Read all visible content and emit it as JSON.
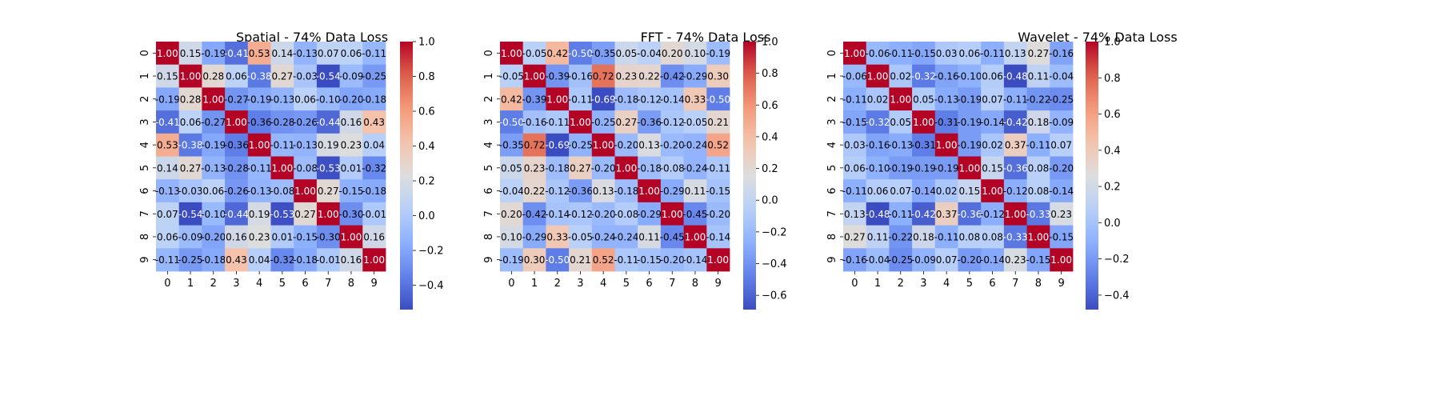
{
  "chart_data": [
    {
      "type": "heatmap",
      "title": "Spatial - 74% Data Loss",
      "x_ticks": [
        "0",
        "1",
        "2",
        "3",
        "4",
        "5",
        "6",
        "7",
        "8",
        "9"
      ],
      "y_ticks": [
        "0",
        "1",
        "2",
        "3",
        "4",
        "5",
        "6",
        "7",
        "8",
        "9"
      ],
      "colormap": "coolwarm",
      "vmin": -0.54,
      "vmax": 1.0,
      "colorbar_ticks": [
        "1.0",
        "0.8",
        "0.6",
        "0.4",
        "0.2",
        "0.0",
        "−0.2",
        "−0.4"
      ],
      "colorbar_tick_values": [
        1.0,
        0.8,
        0.6,
        0.4,
        0.2,
        0.0,
        -0.2,
        -0.4
      ],
      "matrix": [
        [
          1.0,
          0.15,
          -0.19,
          -0.41,
          0.53,
          0.14,
          -0.13,
          0.07,
          0.06,
          -0.11
        ],
        [
          0.15,
          1.0,
          0.28,
          0.06,
          -0.38,
          0.27,
          -0.03,
          -0.54,
          -0.09,
          -0.25
        ],
        [
          -0.19,
          0.28,
          1.0,
          -0.27,
          -0.19,
          -0.13,
          0.06,
          -0.1,
          -0.2,
          -0.18
        ],
        [
          -0.41,
          0.06,
          -0.27,
          1.0,
          -0.36,
          -0.28,
          -0.26,
          -0.44,
          0.16,
          0.43
        ],
        [
          0.53,
          -0.38,
          -0.19,
          -0.36,
          1.0,
          -0.11,
          -0.13,
          0.19,
          0.23,
          0.04
        ],
        [
          0.14,
          0.27,
          -0.13,
          -0.28,
          -0.11,
          1.0,
          -0.08,
          -0.53,
          0.01,
          -0.32
        ],
        [
          -0.13,
          -0.03,
          0.06,
          -0.26,
          -0.13,
          -0.08,
          1.0,
          0.27,
          -0.15,
          -0.18
        ],
        [
          0.07,
          -0.54,
          -0.1,
          -0.44,
          0.19,
          -0.53,
          0.27,
          1.0,
          -0.3,
          -0.01
        ],
        [
          0.06,
          -0.09,
          -0.2,
          0.16,
          0.23,
          0.01,
          -0.15,
          -0.3,
          1.0,
          0.16
        ],
        [
          -0.11,
          -0.25,
          -0.18,
          0.43,
          0.04,
          -0.32,
          -0.18,
          -0.01,
          0.16,
          1.0
        ]
      ]
    },
    {
      "type": "heatmap",
      "title": "FFT - 74% Data Loss",
      "x_ticks": [
        "0",
        "1",
        "2",
        "3",
        "4",
        "5",
        "6",
        "7",
        "8",
        "9"
      ],
      "y_ticks": [
        "0",
        "1",
        "2",
        "3",
        "4",
        "5",
        "6",
        "7",
        "8",
        "9"
      ],
      "colormap": "coolwarm",
      "vmin": -0.69,
      "vmax": 1.0,
      "colorbar_ticks": [
        "1.0",
        "0.8",
        "0.6",
        "0.4",
        "0.2",
        "0.0",
        "−0.2",
        "−0.4",
        "−0.6"
      ],
      "colorbar_tick_values": [
        1.0,
        0.8,
        0.6,
        0.4,
        0.2,
        0.0,
        -0.2,
        -0.4,
        -0.6
      ],
      "matrix": [
        [
          1.0,
          -0.05,
          0.42,
          -0.5,
          -0.35,
          0.05,
          -0.04,
          0.2,
          0.1,
          -0.19
        ],
        [
          -0.05,
          1.0,
          -0.39,
          -0.16,
          0.72,
          0.23,
          0.22,
          -0.42,
          -0.29,
          0.3
        ],
        [
          0.42,
          -0.39,
          1.0,
          -0.11,
          -0.69,
          -0.18,
          -0.12,
          -0.14,
          0.33,
          -0.5
        ],
        [
          -0.5,
          -0.16,
          -0.11,
          1.0,
          -0.25,
          0.27,
          -0.36,
          -0.12,
          -0.05,
          0.21
        ],
        [
          -0.35,
          0.72,
          -0.69,
          -0.25,
          1.0,
          -0.2,
          0.13,
          -0.2,
          -0.24,
          0.52
        ],
        [
          0.05,
          0.23,
          -0.18,
          0.27,
          -0.2,
          1.0,
          -0.18,
          -0.08,
          -0.24,
          -0.11
        ],
        [
          -0.04,
          0.22,
          -0.12,
          -0.36,
          0.13,
          -0.18,
          1.0,
          -0.29,
          0.11,
          -0.15
        ],
        [
          0.2,
          -0.42,
          -0.14,
          -0.12,
          -0.2,
          -0.08,
          -0.29,
          1.0,
          -0.45,
          -0.2
        ],
        [
          0.1,
          -0.29,
          0.33,
          -0.05,
          -0.24,
          -0.24,
          0.11,
          -0.45,
          1.0,
          -0.14
        ],
        [
          -0.19,
          0.3,
          -0.5,
          0.21,
          0.52,
          -0.11,
          -0.15,
          -0.2,
          -0.14,
          1.0
        ]
      ]
    },
    {
      "type": "heatmap",
      "title": "Wavelet - 74% Data Loss",
      "x_ticks": [
        "0",
        "1",
        "2",
        "3",
        "4",
        "5",
        "6",
        "7",
        "8",
        "9"
      ],
      "y_ticks": [
        "0",
        "1",
        "2",
        "3",
        "4",
        "5",
        "6",
        "7",
        "8",
        "9"
      ],
      "colormap": "coolwarm",
      "vmin": -0.48,
      "vmax": 1.0,
      "colorbar_ticks": [
        "1.0",
        "0.8",
        "0.6",
        "0.4",
        "0.2",
        "0.0",
        "−0.2",
        "−0.4"
      ],
      "colorbar_tick_values": [
        1.0,
        0.8,
        0.6,
        0.4,
        0.2,
        0.0,
        -0.2,
        -0.4
      ],
      "matrix": [
        [
          1.0,
          -0.06,
          -0.11,
          -0.15,
          0.03,
          0.06,
          -0.11,
          0.13,
          0.27,
          -0.16
        ],
        [
          -0.06,
          1.0,
          0.02,
          -0.32,
          -0.16,
          -0.1,
          0.06,
          -0.48,
          0.11,
          -0.04
        ],
        [
          -0.11,
          0.02,
          1.0,
          0.05,
          -0.13,
          -0.19,
          0.07,
          -0.11,
          -0.22,
          -0.25
        ],
        [
          -0.15,
          -0.32,
          0.05,
          1.0,
          -0.31,
          -0.19,
          -0.14,
          -0.42,
          0.18,
          -0.09
        ],
        [
          0.03,
          -0.16,
          -0.13,
          -0.31,
          1.0,
          -0.19,
          0.02,
          0.37,
          -0.11,
          0.07
        ],
        [
          0.06,
          -0.1,
          -0.19,
          -0.19,
          -0.19,
          1.0,
          0.15,
          -0.36,
          0.08,
          -0.2
        ],
        [
          -0.11,
          0.06,
          0.07,
          -0.14,
          0.02,
          0.15,
          1.0,
          -0.12,
          0.08,
          -0.14
        ],
        [
          0.13,
          -0.48,
          -0.11,
          -0.42,
          0.37,
          -0.36,
          -0.12,
          1.0,
          -0.33,
          0.23
        ],
        [
          0.27,
          0.11,
          -0.22,
          0.18,
          -0.11,
          0.08,
          0.08,
          -0.33,
          1.0,
          -0.15
        ],
        [
          -0.16,
          -0.04,
          -0.25,
          -0.09,
          0.07,
          -0.2,
          -0.14,
          0.23,
          -0.15,
          1.0
        ]
      ]
    }
  ]
}
